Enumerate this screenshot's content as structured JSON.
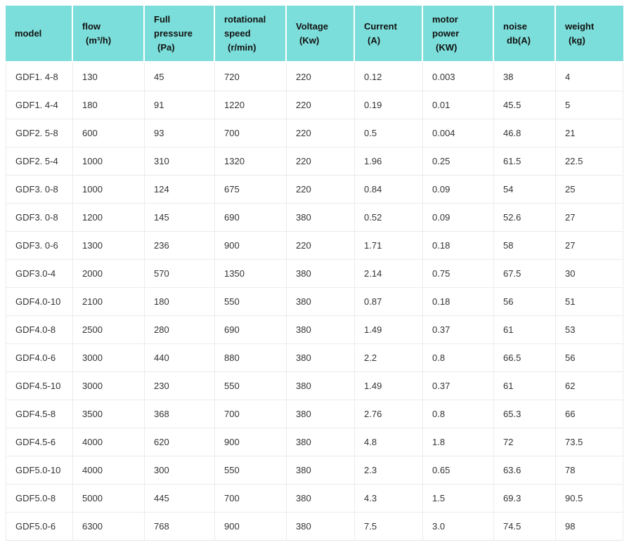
{
  "colors": {
    "header_background": "#7cdeda",
    "header_text": "#111111",
    "body_text": "#333333",
    "grid_line": "#ebebeb",
    "page_background": "#ffffff"
  },
  "table": {
    "columns": [
      {
        "label": "model",
        "unit": ""
      },
      {
        "label": "flow",
        "unit": "(m³/h)"
      },
      {
        "label": "Full pressure",
        "unit": "(Pa)"
      },
      {
        "label": "rotational speed",
        "unit": "(r/min)"
      },
      {
        "label": "Voltage",
        "unit": "(Kw)"
      },
      {
        "label": "Current",
        "unit": "(A)"
      },
      {
        "label": "motor power",
        "unit": "(KW)"
      },
      {
        "label": "noise",
        "unit": "db(A)"
      },
      {
        "label": "weight",
        "unit": "(kg)"
      }
    ],
    "rows": [
      [
        "GDF1. 4-8",
        "130",
        "45",
        "720",
        "220",
        "0.12",
        "0.003",
        "38",
        "4"
      ],
      [
        "GDF1. 4-4",
        "180",
        "91",
        "1220",
        "220",
        "0.19",
        "0.01",
        "45.5",
        "5"
      ],
      [
        "GDF2. 5-8",
        "600",
        "93",
        "700",
        "220",
        "0.5",
        "0.004",
        "46.8",
        "21"
      ],
      [
        "GDF2. 5-4",
        "1000",
        "310",
        "1320",
        "220",
        "1.96",
        "0.25",
        "61.5",
        "22.5"
      ],
      [
        "GDF3. 0-8",
        "1000",
        "124",
        "675",
        "220",
        "0.84",
        "0.09",
        "54",
        "25"
      ],
      [
        "GDF3. 0-8",
        "1200",
        "145",
        "690",
        "380",
        "0.52",
        "0.09",
        "52.6",
        "27"
      ],
      [
        "GDF3. 0-6",
        "1300",
        "236",
        "900",
        "220",
        "1.71",
        "0.18",
        "58",
        "27"
      ],
      [
        "GDF3.0-4",
        "2000",
        "570",
        "1350",
        "380",
        "2.14",
        "0.75",
        "67.5",
        "30"
      ],
      [
        "GDF4.0-10",
        "2100",
        "180",
        "550",
        "380",
        "0.87",
        "0.18",
        "56",
        "51"
      ],
      [
        "GDF4.0-8",
        "2500",
        "280",
        "690",
        "380",
        "1.49",
        "0.37",
        "61",
        "53"
      ],
      [
        "GDF4.0-6",
        "3000",
        "440",
        "880",
        "380",
        "2.2",
        "0.8",
        "66.5",
        "56"
      ],
      [
        "GDF4.5-10",
        "3000",
        "230",
        "550",
        "380",
        "1.49",
        "0.37",
        "61",
        "62"
      ],
      [
        "GDF4.5-8",
        "3500",
        "368",
        "700",
        "380",
        "2.76",
        "0.8",
        "65.3",
        "66"
      ],
      [
        "GDF4.5-6",
        "4000",
        "620",
        "900",
        "380",
        "4.8",
        "1.8",
        "72",
        "73.5"
      ],
      [
        "GDF5.0-10",
        "4000",
        "300",
        "550",
        "380",
        "2.3",
        "0.65",
        "63.6",
        "78"
      ],
      [
        "GDF5.0-8",
        "5000",
        "445",
        "700",
        "380",
        "4.3",
        "1.5",
        "69.3",
        "90.5"
      ],
      [
        "GDF5.0-6",
        "6300",
        "768",
        "900",
        "380",
        "7.5",
        "3.0",
        "74.5",
        "98"
      ]
    ]
  }
}
